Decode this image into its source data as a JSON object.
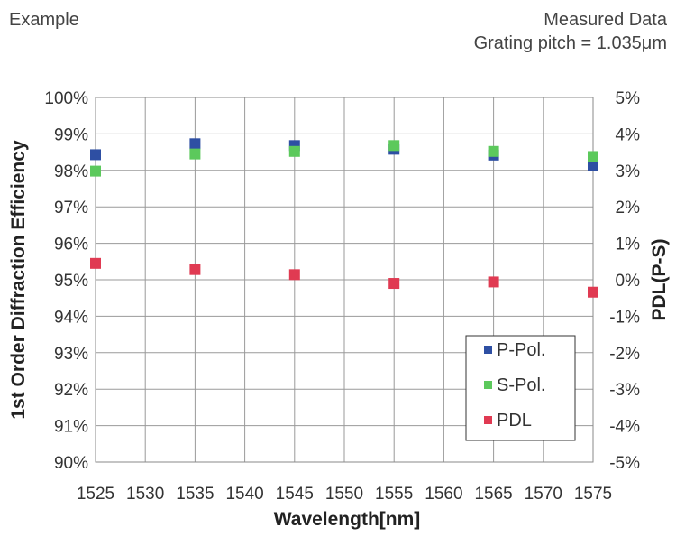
{
  "header": {
    "left": "Example",
    "right_line1": "Measured Data",
    "right_line2": "Grating pitch = 1.035μm"
  },
  "chart_data": {
    "type": "scatter",
    "xlabel": "Wavelength[nm]",
    "ylabel": "1st Order Diffraction Efficiency",
    "y2label": "PDL(P-S)",
    "xlim": [
      1525,
      1575
    ],
    "ylim": [
      90,
      100
    ],
    "y2lim": [
      -5,
      5
    ],
    "x_ticks": [
      1525,
      1530,
      1535,
      1540,
      1545,
      1550,
      1555,
      1560,
      1565,
      1570,
      1575
    ],
    "y_ticks": [
      "90%",
      "91%",
      "92%",
      "93%",
      "94%",
      "95%",
      "96%",
      "97%",
      "98%",
      "99%",
      "100%"
    ],
    "y_tick_values": [
      90,
      91,
      92,
      93,
      94,
      95,
      96,
      97,
      98,
      99,
      100
    ],
    "y2_ticks": [
      "-5%",
      "-4%",
      "-3%",
      "-2%",
      "-1%",
      "0%",
      "1%",
      "2%",
      "3%",
      "4%",
      "5%"
    ],
    "y2_tick_values": [
      -5,
      -4,
      -3,
      -2,
      -1,
      0,
      1,
      2,
      3,
      4,
      5
    ],
    "grid": true,
    "legend_position": "bottom-right",
    "x": [
      1525,
      1535,
      1545,
      1555,
      1565,
      1575
    ],
    "series": [
      {
        "name": "P-Pol.",
        "axis": "left",
        "color": "#2e4fa3",
        "values": [
          98.43,
          98.73,
          98.68,
          98.58,
          98.42,
          98.12
        ]
      },
      {
        "name": "S-Pol.",
        "axis": "left",
        "color": "#5cc95c",
        "values": [
          97.98,
          98.45,
          98.52,
          98.68,
          98.52,
          98.38
        ]
      },
      {
        "name": "PDL",
        "axis": "right",
        "color": "#e03a52",
        "values": [
          0.45,
          0.28,
          0.14,
          -0.1,
          -0.06,
          -0.34
        ]
      }
    ]
  }
}
